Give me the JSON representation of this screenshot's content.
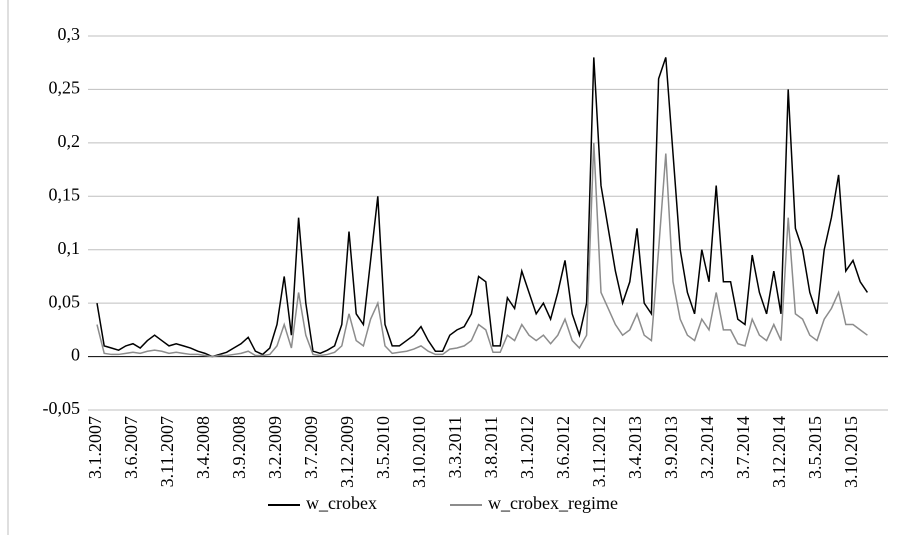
{
  "chart_data": {
    "type": "line",
    "categories": [
      "3.1.2007",
      null,
      null,
      null,
      null,
      "3.6.2007",
      null,
      null,
      null,
      null,
      "3.11.2007",
      null,
      null,
      null,
      null,
      "3.4.2008",
      null,
      null,
      null,
      null,
      "3.9.2008",
      null,
      null,
      null,
      null,
      "3.2.2009",
      null,
      null,
      null,
      null,
      "3.7.2009",
      null,
      null,
      null,
      null,
      "3.12.2009",
      null,
      null,
      null,
      null,
      "3.5.2010",
      null,
      null,
      null,
      null,
      "3.10.2010",
      null,
      null,
      null,
      null,
      "3.3.2011",
      null,
      null,
      null,
      null,
      "3.8.2011",
      null,
      null,
      null,
      null,
      "3.1.2012",
      null,
      null,
      null,
      null,
      "3.6.2012",
      null,
      null,
      null,
      null,
      "3.11.2012",
      null,
      null,
      null,
      null,
      "3.4.2013",
      null,
      null,
      null,
      null,
      "3.9.2013",
      null,
      null,
      null,
      null,
      "3.2.2014",
      null,
      null,
      null,
      null,
      "3.7.2014",
      null,
      null,
      null,
      null,
      "3.12.2014",
      null,
      null,
      null,
      null,
      "3.5.2015",
      null,
      null,
      null,
      null,
      "3.10.2015",
      null,
      null
    ],
    "series": [
      {
        "name": "w_crobex",
        "color": "#000000",
        "values": [
          0.05,
          0.01,
          0.008,
          0.006,
          0.01,
          0.012,
          0.008,
          0.015,
          0.02,
          0.015,
          0.01,
          0.012,
          0.01,
          0.008,
          0.005,
          0.003,
          0,
          0.002,
          0.004,
          0.008,
          0.012,
          0.018,
          0.005,
          0.002,
          0.008,
          0.03,
          0.075,
          0.02,
          0.13,
          0.05,
          0.005,
          0.003,
          0.006,
          0.01,
          0.03,
          0.117,
          0.04,
          0.03,
          0.09,
          0.15,
          0.03,
          0.01,
          0.01,
          0.015,
          0.02,
          0.028,
          0.015,
          0.005,
          0.005,
          0.02,
          0.025,
          0.028,
          0.04,
          0.075,
          0.07,
          0.01,
          0.01,
          0.055,
          0.045,
          0.08,
          0.06,
          0.04,
          0.05,
          0.035,
          0.06,
          0.09,
          0.04,
          0.02,
          0.05,
          0.28,
          0.16,
          0.12,
          0.08,
          0.05,
          0.07,
          0.12,
          0.05,
          0.04,
          0.26,
          0.28,
          0.19,
          0.1,
          0.06,
          0.04,
          0.1,
          0.07,
          0.16,
          0.07,
          0.07,
          0.035,
          0.03,
          0.095,
          0.06,
          0.04,
          0.08,
          0.04,
          0.25,
          0.12,
          0.1,
          0.06,
          0.04,
          0.1,
          0.13,
          0.17,
          0.08,
          0.09,
          0.07,
          0.06
        ]
      },
      {
        "name": "w_crobex_regime",
        "color": "#8c8c8c",
        "values": [
          0.03,
          0.003,
          0.002,
          0.002,
          0.003,
          0.004,
          0.003,
          0.005,
          0.006,
          0.005,
          0.003,
          0.004,
          0.003,
          0.002,
          0.002,
          0.001,
          0,
          0.001,
          0.001,
          0.002,
          0.003,
          0.005,
          0.001,
          0.001,
          0.002,
          0.01,
          0.03,
          0.008,
          0.06,
          0.02,
          0.002,
          0.001,
          0.002,
          0.004,
          0.01,
          0.04,
          0.015,
          0.01,
          0.035,
          0.05,
          0.01,
          0.003,
          0.004,
          0.005,
          0.007,
          0.01,
          0.005,
          0.002,
          0.002,
          0.007,
          0.008,
          0.01,
          0.015,
          0.03,
          0.025,
          0.004,
          0.004,
          0.02,
          0.015,
          0.03,
          0.02,
          0.015,
          0.02,
          0.012,
          0.02,
          0.035,
          0.015,
          0.008,
          0.02,
          0.2,
          0.06,
          0.045,
          0.03,
          0.02,
          0.025,
          0.04,
          0.02,
          0.015,
          0.1,
          0.19,
          0.07,
          0.035,
          0.02,
          0.015,
          0.035,
          0.025,
          0.06,
          0.025,
          0.025,
          0.012,
          0.01,
          0.035,
          0.02,
          0.015,
          0.03,
          0.015,
          0.13,
          0.04,
          0.035,
          0.02,
          0.015,
          0.035,
          0.045,
          0.06,
          0.03,
          0.03,
          0.025,
          0.02
        ]
      }
    ],
    "ylim": [
      -0.05,
      0.3
    ],
    "yticks": [
      {
        "value": -0.05,
        "label": "-0,05"
      },
      0,
      {
        "value": 0.05,
        "label": "0,05"
      },
      {
        "value": 0.1,
        "label": "0,1"
      },
      {
        "value": 0.15,
        "label": "0,15"
      },
      {
        "value": 0.2,
        "label": "0,2"
      },
      {
        "value": 0.25,
        "label": "0,25"
      },
      {
        "value": 0.3,
        "label": "0,3"
      }
    ],
    "grid": true,
    "legend": "bottom"
  }
}
